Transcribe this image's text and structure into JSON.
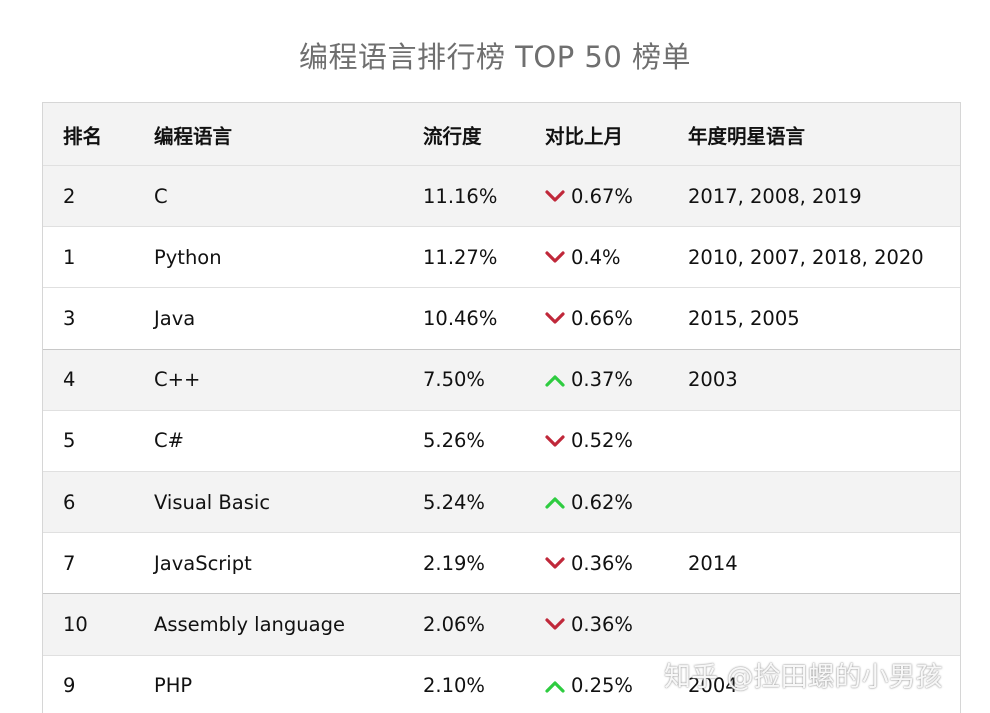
{
  "title": "编程语言排行榜 TOP 50 榜单",
  "headers": {
    "rank": "排名",
    "language": "编程语言",
    "popularity": "流行度",
    "change": "对比上月",
    "star_years": "年度明星语言"
  },
  "rows": [
    {
      "rank": "2",
      "language": "C",
      "popularity": "11.16%",
      "direction": "down",
      "change": "0.67%",
      "star_years": "2017, 2008, 2019"
    },
    {
      "rank": "1",
      "language": "Python",
      "popularity": "11.27%",
      "direction": "down",
      "change": "0.4%",
      "star_years": "2010, 2007, 2018, 2020"
    },
    {
      "rank": "3",
      "language": "Java",
      "popularity": "10.46%",
      "direction": "down",
      "change": "0.66%",
      "star_years": "2015, 2005"
    },
    {
      "rank": "4",
      "language": "C++",
      "popularity": "7.50%",
      "direction": "up",
      "change": "0.37%",
      "star_years": "2003"
    },
    {
      "rank": "5",
      "language": "C#",
      "popularity": "5.26%",
      "direction": "down",
      "change": "0.52%",
      "star_years": ""
    },
    {
      "rank": "6",
      "language": "Visual Basic",
      "popularity": "5.24%",
      "direction": "up",
      "change": "0.62%",
      "star_years": ""
    },
    {
      "rank": "7",
      "language": "JavaScript",
      "popularity": "2.19%",
      "direction": "down",
      "change": "0.36%",
      "star_years": "2014"
    },
    {
      "rank": "10",
      "language": "Assembly language",
      "popularity": "2.06%",
      "direction": "down",
      "change": "0.36%",
      "star_years": ""
    },
    {
      "rank": "9",
      "language": "PHP",
      "popularity": "2.10%",
      "direction": "up",
      "change": "0.25%",
      "star_years": "2004"
    }
  ],
  "colors": {
    "down_arrow": "#c0283a",
    "up_arrow": "#2ecc40",
    "alt_row": "#f3f3f3",
    "title": "#6f6f6f"
  },
  "watermark": "知乎 @捡田螺的小男孩"
}
